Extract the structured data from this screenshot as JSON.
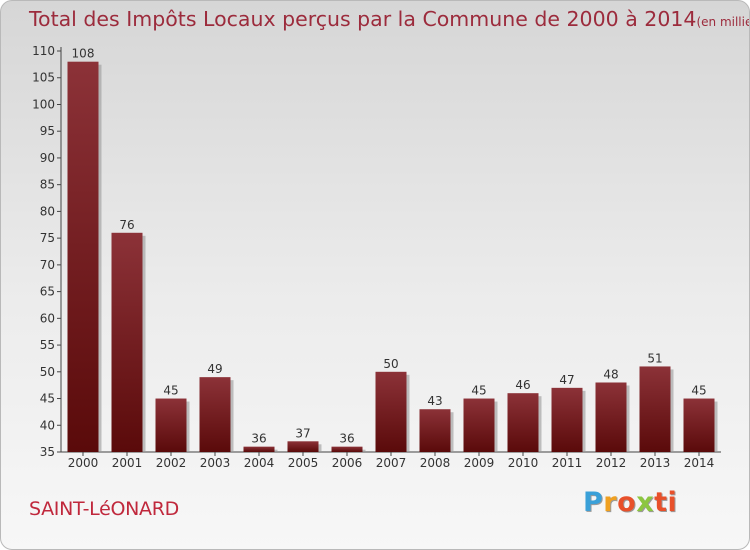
{
  "title": "Total des Impôts Locaux perçus par la Commune de 2000 à 2014",
  "unit_note": "(en milliers d'€)",
  "commune": "SAINT-LéONARD",
  "brand": {
    "p": "P",
    "r": "r",
    "o": "o",
    "x": "x",
    "i": "i",
    "t": "ti"
  },
  "colors": {
    "title": "#9c2b3c",
    "bar_top": "#8c3238",
    "bar_bottom": "#5a0a0a"
  },
  "chart_data": {
    "type": "bar",
    "title": "Total des Impôts Locaux perçus par la Commune de 2000 à 2014",
    "ylabel": "en milliers d'€",
    "xlabel": "",
    "categories": [
      "2000",
      "2001",
      "2002",
      "2003",
      "2004",
      "2005",
      "2006",
      "2007",
      "2008",
      "2009",
      "2010",
      "2011",
      "2012",
      "2013",
      "2014"
    ],
    "values": [
      108,
      76,
      45,
      49,
      36,
      37,
      36,
      50,
      43,
      45,
      46,
      47,
      48,
      51,
      45
    ],
    "ylim": [
      35,
      110
    ],
    "yticks": [
      35,
      40,
      45,
      50,
      55,
      60,
      65,
      70,
      75,
      80,
      85,
      90,
      95,
      100,
      105,
      110
    ],
    "grid": false
  }
}
